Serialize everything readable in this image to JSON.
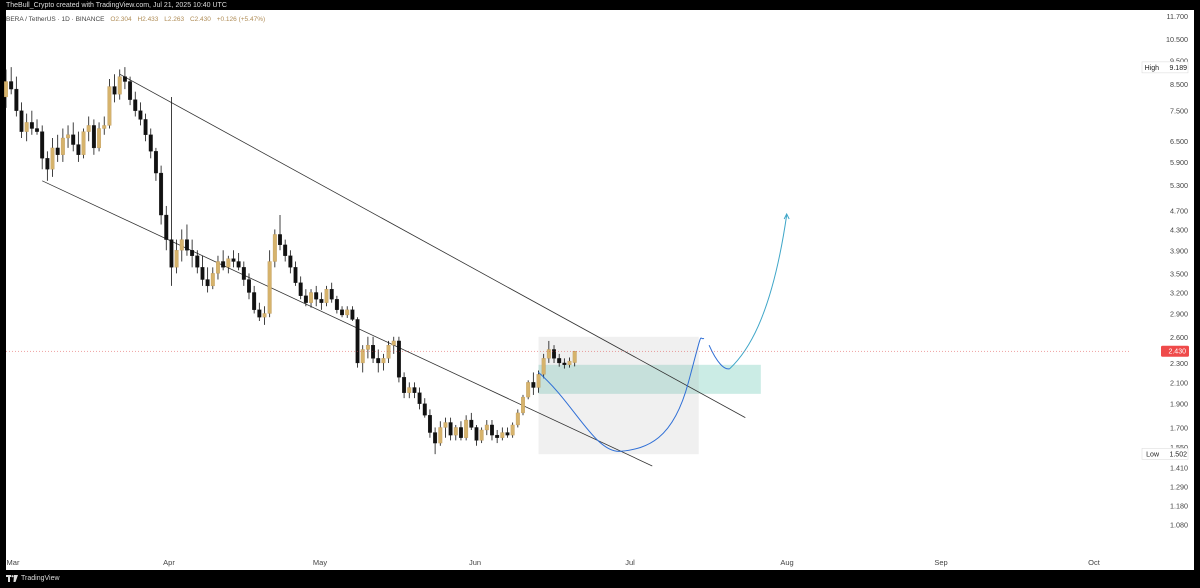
{
  "header": {
    "credit": "TheBull_Crypto created with TradingView.com, Jul 21, 2025 10:40 UTC"
  },
  "symbol": {
    "pair": "BERA / TetherUS · 1D · BINANCE",
    "open": "O2.304",
    "high": "H2.433",
    "low": "L2.263",
    "close": "C2.430",
    "change": "+0.126 (+5.47%)"
  },
  "footer": {
    "brand": "TradingView"
  },
  "chart_data": {
    "type": "candlestick",
    "yscale": "log",
    "ylim": [
      0.98,
      11.8
    ],
    "y_tick_labels": [
      "11.700",
      "10.500",
      "9.500",
      "8.500",
      "7.500",
      "6.500",
      "5.900",
      "5.300",
      "4.700",
      "4.300",
      "3.900",
      "3.500",
      "3.200",
      "2.900",
      "2.600",
      "2.300",
      "2.100",
      "1.900",
      "1.700",
      "1.550",
      "1.410",
      "1.290",
      "1.180",
      "1.080"
    ],
    "x_tick_labels": [
      "Mar",
      "Apr",
      "May",
      "Jun",
      "Jul",
      "Aug",
      "Sep",
      "Oct"
    ],
    "price_marks": {
      "high": {
        "label": "High",
        "value": "9.189"
      },
      "low": {
        "label": "Low",
        "value": "1.502"
      },
      "last": {
        "value": "2.430"
      }
    },
    "candles": [
      {
        "o": 8.0,
        "h": 9.1,
        "l": 7.6,
        "c": 8.6
      },
      {
        "o": 8.6,
        "h": 9.2,
        "l": 8.1,
        "c": 8.3
      },
      {
        "o": 8.3,
        "h": 8.8,
        "l": 7.3,
        "c": 7.5
      },
      {
        "o": 7.5,
        "h": 7.8,
        "l": 6.6,
        "c": 6.8
      },
      {
        "o": 6.8,
        "h": 7.4,
        "l": 6.5,
        "c": 7.1
      },
      {
        "o": 7.1,
        "h": 7.5,
        "l": 6.7,
        "c": 6.9
      },
      {
        "o": 6.9,
        "h": 7.2,
        "l": 6.7,
        "c": 6.8
      },
      {
        "o": 6.8,
        "h": 7.0,
        "l": 5.7,
        "c": 6.0
      },
      {
        "o": 6.0,
        "h": 6.2,
        "l": 5.4,
        "c": 5.7
      },
      {
        "o": 5.7,
        "h": 6.6,
        "l": 5.5,
        "c": 6.3
      },
      {
        "o": 6.3,
        "h": 6.7,
        "l": 5.9,
        "c": 6.1
      },
      {
        "o": 6.1,
        "h": 6.9,
        "l": 5.9,
        "c": 6.6
      },
      {
        "o": 6.6,
        "h": 7.0,
        "l": 6.3,
        "c": 6.7
      },
      {
        "o": 6.7,
        "h": 7.1,
        "l": 6.2,
        "c": 6.4
      },
      {
        "o": 6.4,
        "h": 6.8,
        "l": 5.9,
        "c": 6.1
      },
      {
        "o": 6.1,
        "h": 6.9,
        "l": 6.0,
        "c": 6.8
      },
      {
        "o": 6.8,
        "h": 7.3,
        "l": 6.5,
        "c": 7.0
      },
      {
        "o": 7.0,
        "h": 7.2,
        "l": 6.1,
        "c": 6.3
      },
      {
        "o": 6.3,
        "h": 7.1,
        "l": 6.2,
        "c": 6.9
      },
      {
        "o": 6.9,
        "h": 7.3,
        "l": 6.7,
        "c": 7.0
      },
      {
        "o": 7.0,
        "h": 8.7,
        "l": 6.9,
        "c": 8.4
      },
      {
        "o": 8.4,
        "h": 8.9,
        "l": 7.8,
        "c": 8.1
      },
      {
        "o": 8.1,
        "h": 9.1,
        "l": 7.9,
        "c": 8.8
      },
      {
        "o": 8.8,
        "h": 9.2,
        "l": 8.3,
        "c": 8.6
      },
      {
        "o": 8.6,
        "h": 8.8,
        "l": 7.7,
        "c": 7.9
      },
      {
        "o": 7.9,
        "h": 8.2,
        "l": 7.3,
        "c": 7.5
      },
      {
        "o": 7.5,
        "h": 7.8,
        "l": 7.0,
        "c": 7.2
      },
      {
        "o": 7.2,
        "h": 7.4,
        "l": 6.5,
        "c": 6.7
      },
      {
        "o": 6.7,
        "h": 6.9,
        "l": 6.0,
        "c": 6.2
      },
      {
        "o": 6.2,
        "h": 6.3,
        "l": 5.4,
        "c": 5.6
      },
      {
        "o": 5.6,
        "h": 5.8,
        "l": 4.4,
        "c": 4.6
      },
      {
        "o": 4.6,
        "h": 4.8,
        "l": 3.9,
        "c": 4.1
      },
      {
        "o": 4.1,
        "h": 8.0,
        "l": 3.3,
        "c": 3.6
      },
      {
        "o": 3.6,
        "h": 4.1,
        "l": 3.5,
        "c": 3.9
      },
      {
        "o": 3.9,
        "h": 4.3,
        "l": 3.7,
        "c": 4.1
      },
      {
        "o": 4.1,
        "h": 4.4,
        "l": 3.8,
        "c": 3.9
      },
      {
        "o": 3.9,
        "h": 4.1,
        "l": 3.6,
        "c": 3.8
      },
      {
        "o": 3.8,
        "h": 3.9,
        "l": 3.5,
        "c": 3.6
      },
      {
        "o": 3.6,
        "h": 3.8,
        "l": 3.3,
        "c": 3.4
      },
      {
        "o": 3.4,
        "h": 3.6,
        "l": 3.2,
        "c": 3.3
      },
      {
        "o": 3.3,
        "h": 3.6,
        "l": 3.25,
        "c": 3.5
      },
      {
        "o": 3.5,
        "h": 3.8,
        "l": 3.4,
        "c": 3.7
      },
      {
        "o": 3.7,
        "h": 3.9,
        "l": 3.55,
        "c": 3.6
      },
      {
        "o": 3.6,
        "h": 3.8,
        "l": 3.5,
        "c": 3.75
      },
      {
        "o": 3.75,
        "h": 3.9,
        "l": 3.6,
        "c": 3.7
      },
      {
        "o": 3.7,
        "h": 3.85,
        "l": 3.55,
        "c": 3.6
      },
      {
        "o": 3.6,
        "h": 3.7,
        "l": 3.3,
        "c": 3.4
      },
      {
        "o": 3.4,
        "h": 3.5,
        "l": 3.1,
        "c": 3.2
      },
      {
        "o": 3.2,
        "h": 3.3,
        "l": 2.9,
        "c": 2.95
      },
      {
        "o": 2.95,
        "h": 3.05,
        "l": 2.8,
        "c": 2.85
      },
      {
        "o": 2.85,
        "h": 3.0,
        "l": 2.75,
        "c": 2.9
      },
      {
        "o": 2.9,
        "h": 3.9,
        "l": 2.85,
        "c": 3.7
      },
      {
        "o": 3.7,
        "h": 4.3,
        "l": 3.6,
        "c": 4.2
      },
      {
        "o": 4.2,
        "h": 4.6,
        "l": 3.9,
        "c": 4.0
      },
      {
        "o": 4.0,
        "h": 4.1,
        "l": 3.7,
        "c": 3.8
      },
      {
        "o": 3.8,
        "h": 3.9,
        "l": 3.5,
        "c": 3.6
      },
      {
        "o": 3.6,
        "h": 3.7,
        "l": 3.3,
        "c": 3.35
      },
      {
        "o": 3.35,
        "h": 3.45,
        "l": 3.1,
        "c": 3.15
      },
      {
        "o": 3.15,
        "h": 3.25,
        "l": 3.0,
        "c": 3.05
      },
      {
        "o": 3.05,
        "h": 3.25,
        "l": 2.98,
        "c": 3.2
      },
      {
        "o": 3.2,
        "h": 3.3,
        "l": 3.0,
        "c": 3.1
      },
      {
        "o": 3.1,
        "h": 3.2,
        "l": 2.95,
        "c": 3.05
      },
      {
        "o": 3.05,
        "h": 3.3,
        "l": 3.0,
        "c": 3.25
      },
      {
        "o": 3.25,
        "h": 3.35,
        "l": 3.05,
        "c": 3.1
      },
      {
        "o": 3.1,
        "h": 3.15,
        "l": 2.9,
        "c": 2.95
      },
      {
        "o": 2.95,
        "h": 3.0,
        "l": 2.85,
        "c": 2.88
      },
      {
        "o": 2.88,
        "h": 3.0,
        "l": 2.84,
        "c": 2.95
      },
      {
        "o": 2.95,
        "h": 3.0,
        "l": 2.8,
        "c": 2.82
      },
      {
        "o": 2.82,
        "h": 2.85,
        "l": 2.25,
        "c": 2.3
      },
      {
        "o": 2.3,
        "h": 2.5,
        "l": 2.2,
        "c": 2.45
      },
      {
        "o": 2.45,
        "h": 2.6,
        "l": 2.35,
        "c": 2.5
      },
      {
        "o": 2.5,
        "h": 2.6,
        "l": 2.3,
        "c": 2.35
      },
      {
        "o": 2.35,
        "h": 2.45,
        "l": 2.2,
        "c": 2.3
      },
      {
        "o": 2.3,
        "h": 2.4,
        "l": 2.22,
        "c": 2.35
      },
      {
        "o": 2.35,
        "h": 2.55,
        "l": 2.3,
        "c": 2.5
      },
      {
        "o": 2.5,
        "h": 2.6,
        "l": 2.4,
        "c": 2.55
      },
      {
        "o": 2.55,
        "h": 2.6,
        "l": 2.1,
        "c": 2.15
      },
      {
        "o": 2.15,
        "h": 2.2,
        "l": 1.95,
        "c": 2.0
      },
      {
        "o": 2.0,
        "h": 2.1,
        "l": 1.95,
        "c": 2.05
      },
      {
        "o": 2.05,
        "h": 2.1,
        "l": 1.95,
        "c": 2.0
      },
      {
        "o": 2.0,
        "h": 2.05,
        "l": 1.85,
        "c": 1.9
      },
      {
        "o": 1.9,
        "h": 1.95,
        "l": 1.78,
        "c": 1.8
      },
      {
        "o": 1.8,
        "h": 1.85,
        "l": 1.62,
        "c": 1.66
      },
      {
        "o": 1.66,
        "h": 1.7,
        "l": 1.5,
        "c": 1.58
      },
      {
        "o": 1.58,
        "h": 1.75,
        "l": 1.56,
        "c": 1.7
      },
      {
        "o": 1.7,
        "h": 1.78,
        "l": 1.62,
        "c": 1.74
      },
      {
        "o": 1.74,
        "h": 1.78,
        "l": 1.6,
        "c": 1.64
      },
      {
        "o": 1.64,
        "h": 1.72,
        "l": 1.6,
        "c": 1.7
      },
      {
        "o": 1.7,
        "h": 1.75,
        "l": 1.6,
        "c": 1.62
      },
      {
        "o": 1.62,
        "h": 1.8,
        "l": 1.6,
        "c": 1.76
      },
      {
        "o": 1.76,
        "h": 1.82,
        "l": 1.68,
        "c": 1.7
      },
      {
        "o": 1.7,
        "h": 1.72,
        "l": 1.56,
        "c": 1.6
      },
      {
        "o": 1.6,
        "h": 1.7,
        "l": 1.58,
        "c": 1.68
      },
      {
        "o": 1.68,
        "h": 1.76,
        "l": 1.64,
        "c": 1.72
      },
      {
        "o": 1.72,
        "h": 1.76,
        "l": 1.6,
        "c": 1.64
      },
      {
        "o": 1.64,
        "h": 1.68,
        "l": 1.58,
        "c": 1.62
      },
      {
        "o": 1.62,
        "h": 1.7,
        "l": 1.6,
        "c": 1.66
      },
      {
        "o": 1.66,
        "h": 1.7,
        "l": 1.62,
        "c": 1.64
      },
      {
        "o": 1.64,
        "h": 1.74,
        "l": 1.62,
        "c": 1.72
      },
      {
        "o": 1.72,
        "h": 1.85,
        "l": 1.7,
        "c": 1.82
      },
      {
        "o": 1.82,
        "h": 1.98,
        "l": 1.8,
        "c": 1.96
      },
      {
        "o": 1.96,
        "h": 2.12,
        "l": 1.94,
        "c": 2.1
      },
      {
        "o": 2.1,
        "h": 2.2,
        "l": 1.98,
        "c": 2.05
      },
      {
        "o": 2.05,
        "h": 2.22,
        "l": 2.0,
        "c": 2.18
      },
      {
        "o": 2.18,
        "h": 2.4,
        "l": 2.14,
        "c": 2.35
      },
      {
        "o": 2.35,
        "h": 2.55,
        "l": 2.3,
        "c": 2.45
      },
      {
        "o": 2.45,
        "h": 2.5,
        "l": 2.3,
        "c": 2.35
      },
      {
        "o": 2.35,
        "h": 2.4,
        "l": 2.26,
        "c": 2.3
      },
      {
        "o": 2.3,
        "h": 2.35,
        "l": 2.24,
        "c": 2.28
      },
      {
        "o": 2.28,
        "h": 2.36,
        "l": 2.25,
        "c": 2.32
      },
      {
        "o": 2.304,
        "h": 2.433,
        "l": 2.263,
        "c": 2.43
      }
    ]
  }
}
